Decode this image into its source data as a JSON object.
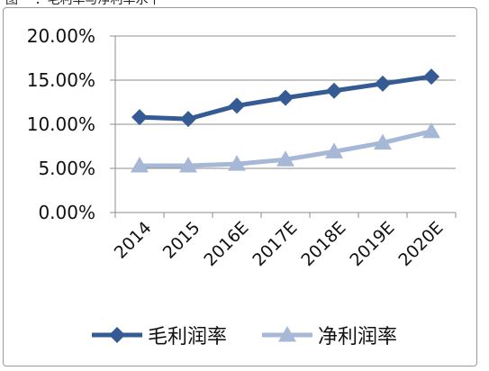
{
  "caption_fragment": "图一 ：毛利率与净利率水平",
  "chart_data": {
    "type": "line",
    "categories": [
      "2014",
      "2015",
      "2016E",
      "2017E",
      "2018E",
      "2019E",
      "2020E"
    ],
    "series": [
      {
        "name": "毛利润率",
        "values": [
          10.8,
          10.6,
          12.1,
          13.0,
          13.8,
          14.6,
          15.4
        ],
        "marker": "diamond",
        "color": "#345b94"
      },
      {
        "name": "净利润率",
        "values": [
          5.3,
          5.3,
          5.5,
          6.0,
          6.9,
          7.9,
          9.2
        ],
        "marker": "triangle",
        "color": "#a7b8d6"
      }
    ],
    "y_ticks": [
      "0.00%",
      "5.00%",
      "10.00%",
      "15.00%",
      "20.00%"
    ],
    "ylim": [
      0,
      20
    ],
    "y_unit": "%",
    "grid": "horizontal",
    "legend_position": "bottom",
    "title": "",
    "xlabel": "",
    "ylabel": ""
  }
}
